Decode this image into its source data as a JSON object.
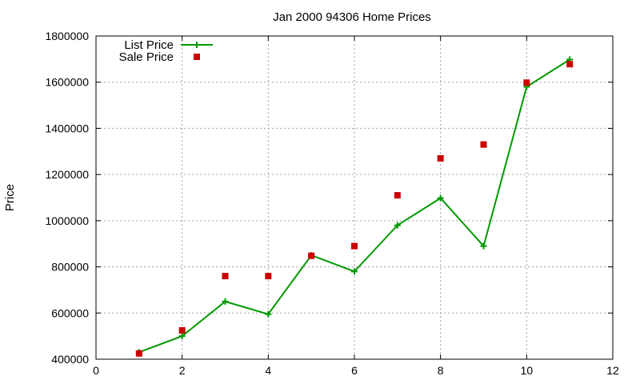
{
  "chart_data": {
    "type": "line",
    "title": "Jan 2000 94306 Home Prices",
    "xlabel": "",
    "ylabel": "Price",
    "xlim": [
      0,
      12
    ],
    "ylim": [
      400000,
      1800000
    ],
    "x_ticks": [
      0,
      2,
      4,
      6,
      8,
      10,
      12
    ],
    "y_ticks": [
      400000,
      600000,
      800000,
      1000000,
      1200000,
      1400000,
      1600000,
      1800000
    ],
    "grid": true,
    "legend_position": "top-left",
    "series": [
      {
        "name": "List Price",
        "style": "lines+crosses",
        "color": "#009900",
        "x": [
          1,
          2,
          3,
          4,
          5,
          6,
          7,
          8,
          9,
          10,
          11
        ],
        "values": [
          430000,
          500000,
          650000,
          595000,
          850000,
          780000,
          980000,
          1098000,
          890000,
          1580000,
          1698000
        ]
      },
      {
        "name": "Sale Price",
        "style": "squares",
        "color": "#cc0000",
        "x": [
          1,
          2,
          3,
          4,
          5,
          6,
          7,
          8,
          9,
          10,
          11
        ],
        "values": [
          425000,
          525000,
          760000,
          760000,
          848000,
          890000,
          1110000,
          1270000,
          1330000,
          1598000,
          1678000
        ]
      }
    ]
  }
}
